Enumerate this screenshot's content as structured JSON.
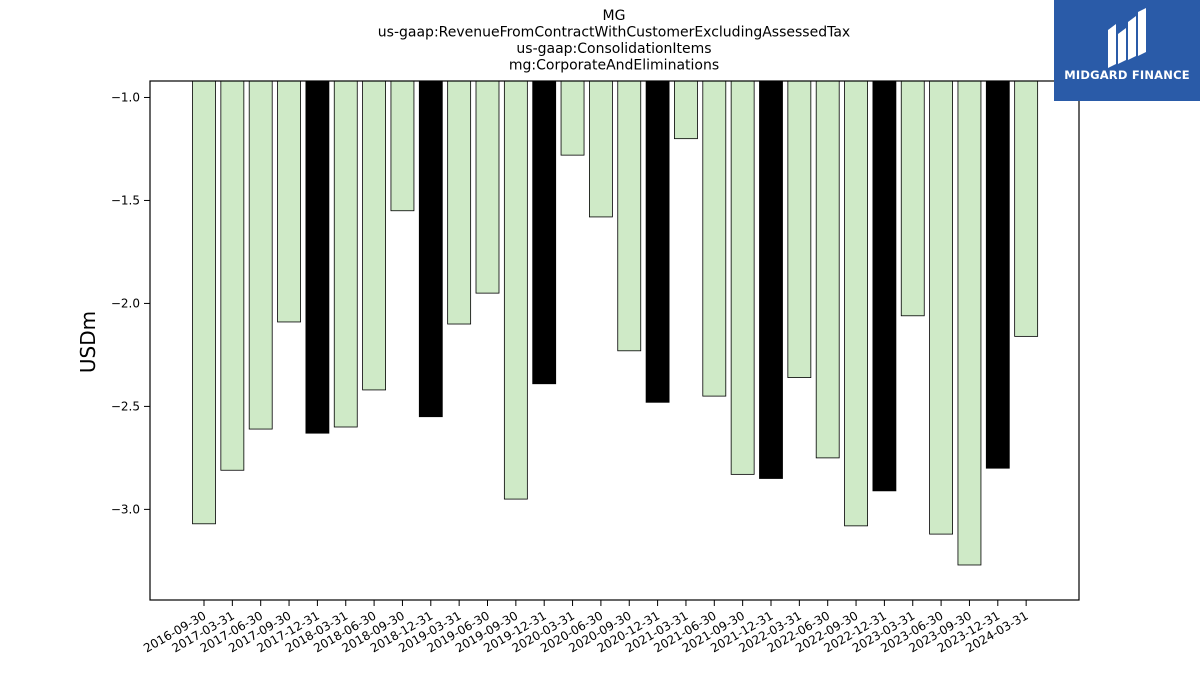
{
  "chart_data": {
    "type": "bar",
    "title": [
      "MG",
      "us-gaap:RevenueFromContractWithCustomerExcludingAssessedTax",
      "us-gaap:ConsolidationItems",
      "mg:CorporateAndEliminations"
    ],
    "ylabel": "USDm",
    "xlabel": "",
    "ylim": [
      -3.44,
      -0.92
    ],
    "yticks": [
      -1.0,
      -1.5,
      -2.0,
      -2.5,
      -3.0
    ],
    "ytick_labels": [
      "−1.0",
      "−1.5",
      "−2.0",
      "−2.5",
      "−3.0"
    ],
    "categories": [
      "2016-09-30",
      "2017-03-31",
      "2017-06-30",
      "2017-09-30",
      "2017-12-31",
      "2018-03-31",
      "2018-06-30",
      "2018-09-30",
      "2018-12-31",
      "2019-03-31",
      "2019-06-30",
      "2019-09-30",
      "2019-12-31",
      "2020-03-31",
      "2020-06-30",
      "2020-09-30",
      "2020-12-31",
      "2021-03-31",
      "2021-06-30",
      "2021-09-30",
      "2021-12-31",
      "2022-03-31",
      "2022-06-30",
      "2022-09-30",
      "2022-12-31",
      "2023-03-31",
      "2023-06-30",
      "2023-09-30",
      "2023-12-31",
      "2024-03-31"
    ],
    "values": [
      -3.07,
      -2.81,
      -2.61,
      -2.09,
      -2.63,
      -2.6,
      -2.42,
      -1.55,
      -2.55,
      -2.1,
      -1.95,
      -2.95,
      -2.39,
      -1.28,
      -1.58,
      -2.23,
      -2.48,
      -1.2,
      -2.45,
      -2.83,
      -2.85,
      -2.36,
      -2.75,
      -3.08,
      -2.91,
      -2.06,
      -3.12,
      -3.27,
      -2.8,
      -2.16
    ],
    "colors": [
      "#cfeac7",
      "#cfeac7",
      "#cfeac7",
      "#cfeac7",
      "#000000",
      "#cfeac7",
      "#cfeac7",
      "#cfeac7",
      "#000000",
      "#cfeac7",
      "#cfeac7",
      "#cfeac7",
      "#000000",
      "#cfeac7",
      "#cfeac7",
      "#cfeac7",
      "#000000",
      "#cfeac7",
      "#cfeac7",
      "#cfeac7",
      "#000000",
      "#cfeac7",
      "#cfeac7",
      "#cfeac7",
      "#000000",
      "#cfeac7",
      "#cfeac7",
      "#cfeac7",
      "#000000",
      "#cfeac7"
    ],
    "grid": false,
    "legend": "none"
  },
  "logo": {
    "text": "MIDGARD FINANCE",
    "background": "#2a5ba8"
  }
}
